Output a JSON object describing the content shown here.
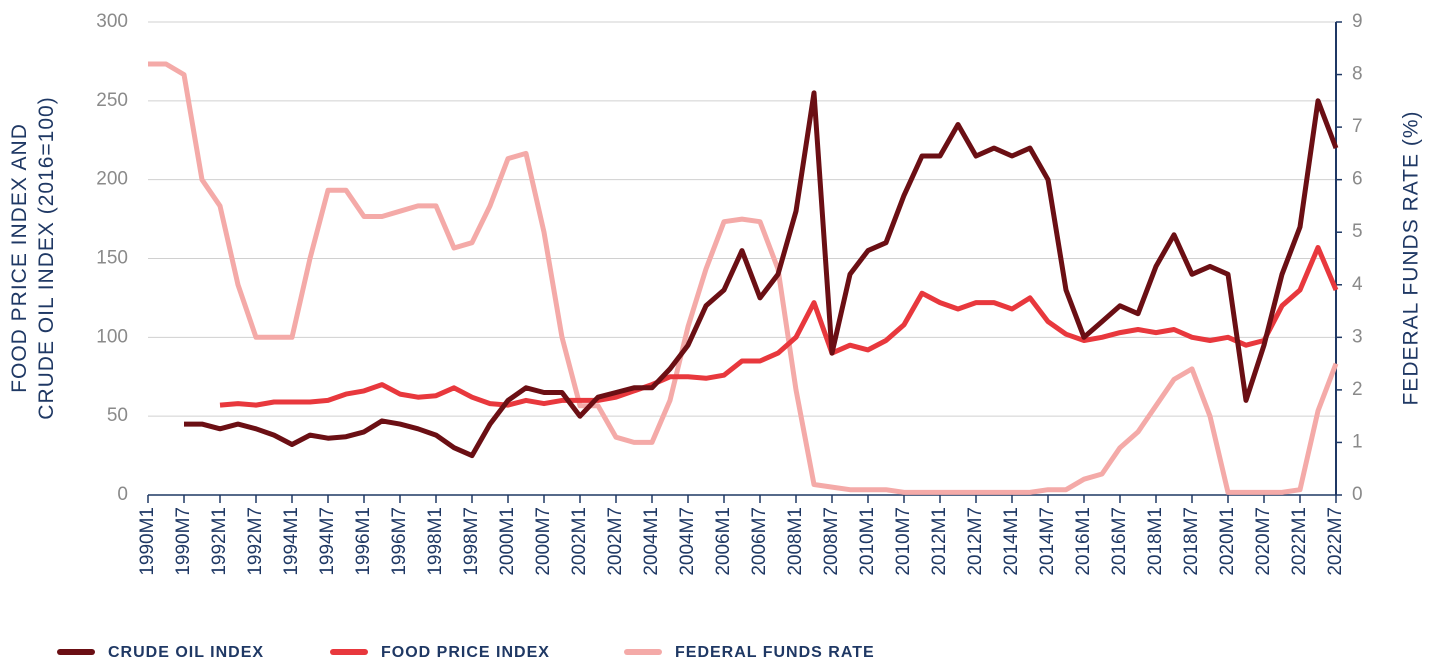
{
  "chart_data": {
    "type": "line",
    "y_label": "FOOD PRICE INDEX AND CRUDE OIL INDEX (2016=100)",
    "y2_label": "FEDERAL FUNDS RATE (%)",
    "categories": [
      "1990M1",
      null,
      "1990M7",
      null,
      "1992M1",
      null,
      "1992M7",
      null,
      "1994M1",
      null,
      "1994M7",
      null,
      "1996M1",
      null,
      "1996M7",
      null,
      "1998M1",
      null,
      "1998M7",
      null,
      "2000M1",
      null,
      "2000M7",
      null,
      "2002M1",
      null,
      "2002M7",
      null,
      "2004M1",
      null,
      "2004M7",
      null,
      "2006M1",
      null,
      "2006M7",
      null,
      "2008M1",
      null,
      "2008M7",
      null,
      "2010M1",
      null,
      "2010M7",
      null,
      "2012M1",
      null,
      "2012M7",
      null,
      "2014M1",
      null,
      "2014M7",
      null,
      "2016M1",
      null,
      "2016M7",
      null,
      "2018M1",
      null,
      "2018M7",
      null,
      "2020M1",
      null,
      "2020M7",
      null,
      "2022M1",
      null,
      "2022M7"
    ],
    "series": [
      {
        "name": "CRUDE OIL INDEX",
        "color": "#6b0f14",
        "values": [
          null,
          null,
          45,
          45,
          42,
          45,
          42,
          38,
          32,
          38,
          36,
          37,
          40,
          47,
          45,
          42,
          38,
          30,
          25,
          45,
          60,
          68,
          65,
          65,
          50,
          62,
          65,
          68,
          68,
          80,
          95,
          120,
          130,
          155,
          125,
          140,
          180,
          255,
          90,
          140,
          155,
          160,
          190,
          215,
          215,
          235,
          215,
          220,
          215,
          220,
          200,
          130,
          100,
          110,
          120,
          115,
          145,
          165,
          140,
          145,
          140,
          60,
          95,
          140,
          170,
          250,
          220
        ]
      },
      {
        "name": "FOOD PRICE INDEX",
        "color": "#e8383d",
        "values": [
          null,
          null,
          null,
          null,
          57,
          58,
          57,
          59,
          59,
          59,
          60,
          64,
          66,
          70,
          64,
          62,
          63,
          68,
          62,
          58,
          57,
          60,
          58,
          60,
          60,
          60,
          62,
          66,
          70,
          75,
          75,
          74,
          76,
          85,
          85,
          90,
          100,
          122,
          90,
          95,
          92,
          98,
          108,
          128,
          122,
          118,
          122,
          122,
          118,
          125,
          110,
          102,
          98,
          100,
          103,
          105,
          103,
          105,
          100,
          98,
          100,
          95,
          98,
          120,
          130,
          157,
          130
        ]
      },
      {
        "name": "FEDERAL FUNDS RATE",
        "color": "#f4aaa8",
        "axis": "y2",
        "values": [
          8.2,
          8.2,
          8.0,
          6.0,
          5.5,
          4.0,
          3.0,
          3.0,
          3.0,
          4.5,
          5.8,
          5.8,
          5.3,
          5.3,
          5.4,
          5.5,
          5.5,
          4.7,
          4.8,
          5.5,
          6.4,
          6.5,
          5.0,
          3.0,
          1.7,
          1.7,
          1.1,
          1.0,
          1.0,
          1.8,
          3.2,
          4.3,
          5.2,
          5.25,
          5.2,
          4.3,
          2.0,
          0.2,
          0.15,
          0.1,
          0.1,
          0.1,
          0.05,
          0.05,
          0.05,
          0.05,
          0.05,
          0.05,
          0.05,
          0.05,
          0.1,
          0.1,
          0.3,
          0.4,
          0.9,
          1.2,
          1.7,
          2.2,
          2.4,
          1.5,
          0.05,
          0.05,
          0.05,
          0.05,
          0.1,
          1.6,
          2.5
        ]
      }
    ],
    "ylim": [
      0,
      300
    ],
    "yticks": [
      0,
      50,
      100,
      150,
      200,
      250,
      300
    ],
    "y2lim": [
      0,
      9
    ],
    "y2ticks": [
      0,
      1,
      2,
      3,
      4,
      5,
      6,
      7,
      8,
      9
    ],
    "grid": true
  }
}
